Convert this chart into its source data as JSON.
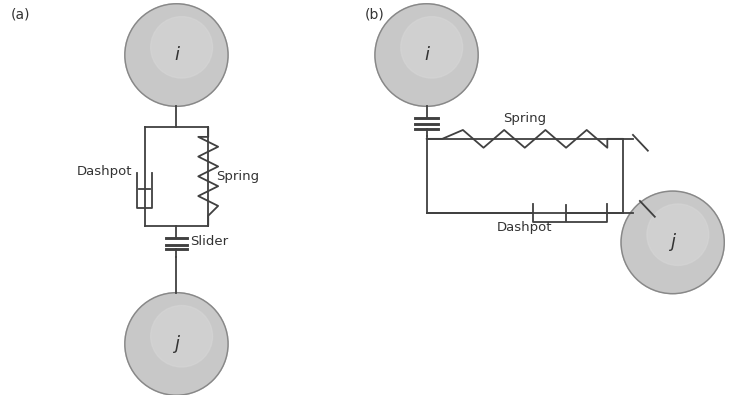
{
  "fig_width": 7.33,
  "fig_height": 3.98,
  "dpi": 100,
  "bg_color": "#ffffff",
  "line_color": "#404040",
  "circle_fill": "#c8c8c8",
  "circle_edge": "#888888",
  "label_a": "(a)",
  "label_b": "(b)",
  "label_i": "i",
  "label_j": "j",
  "label_dashpot_a": "Dashpot",
  "label_spring_a": "Spring",
  "label_slider_a": "Slider",
  "label_spring_b": "Spring",
  "label_dashpot_b": "Dashpot",
  "lw": 1.3,
  "font_size": 10,
  "circle_font_size": 13
}
